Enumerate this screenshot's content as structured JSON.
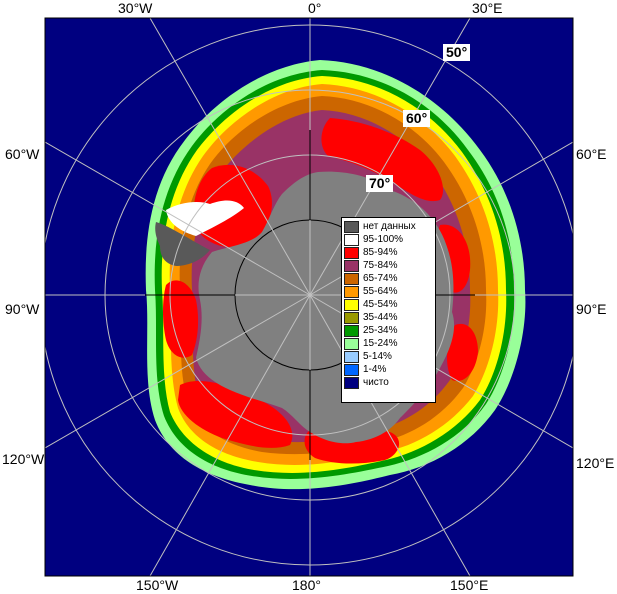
{
  "longitude_labels": {
    "top": [
      "30°W",
      "0°",
      "30°E"
    ],
    "left": [
      "60°W",
      "90°W",
      "120°W"
    ],
    "right": [
      "60°E",
      "90°E",
      "120°E"
    ],
    "bottom": [
      "150°W",
      "180°",
      "150°E"
    ]
  },
  "latitude_labels": [
    "50°",
    "60°",
    "70°"
  ],
  "legend": [
    {
      "label": "нет данных",
      "color": "#595959"
    },
    {
      "label": "95-100%",
      "color": "#ffffff"
    },
    {
      "label": "85-94%",
      "color": "#ff0000"
    },
    {
      "label": "75-84%",
      "color": "#993366"
    },
    {
      "label": "65-74%",
      "color": "#cc6600"
    },
    {
      "label": "55-64%",
      "color": "#ff9900"
    },
    {
      "label": "45-54%",
      "color": "#ffff00"
    },
    {
      "label": "35-44%",
      "color": "#999900"
    },
    {
      "label": "25-34%",
      "color": "#009900"
    },
    {
      "label": "15-24%",
      "color": "#99ff99"
    },
    {
      "label": "5-14%",
      "color": "#99ccff"
    },
    {
      "label": "1-4%",
      "color": "#0066ff"
    },
    {
      "label": "чисто",
      "color": "#000080"
    }
  ],
  "colors": {
    "ocean": "#000080",
    "land": "#808080",
    "no_data": "#595959",
    "graticule": "#c0c0c0",
    "frame": "#000000"
  }
}
